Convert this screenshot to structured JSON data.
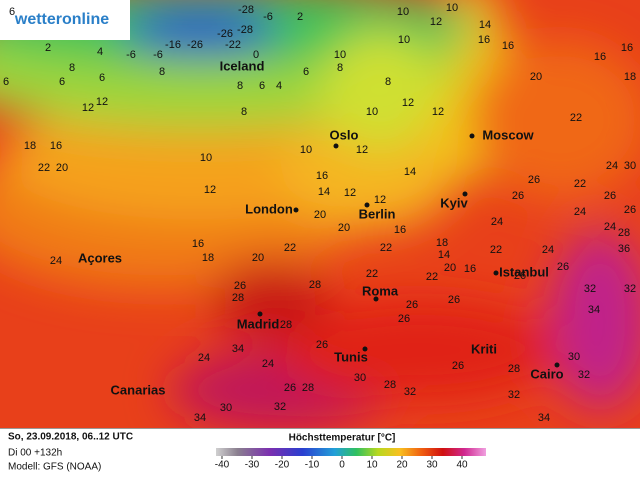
{
  "map": {
    "logo": "wetteronline",
    "cities": [
      "Iceland",
      "Oslo",
      "Moscow",
      "London",
      "Berlin",
      "Kyiv",
      "Açores",
      "Istanbul",
      "Roma",
      "Madrid",
      "Tunis",
      "Kriti",
      "Cairo",
      "Canarias"
    ],
    "temperatures": [
      6,
      -28,
      -6,
      2,
      10,
      10,
      -26,
      -28,
      -26,
      -22,
      -16,
      -6,
      -6,
      0,
      2,
      4,
      6,
      6,
      6,
      8,
      8,
      6,
      8,
      8,
      10,
      16,
      16,
      14,
      12,
      16,
      16,
      20,
      18,
      8,
      6,
      4,
      8,
      12,
      12,
      12,
      10,
      12,
      10,
      18,
      16,
      22,
      20,
      10,
      12,
      10,
      12,
      16,
      14,
      12,
      20,
      20,
      12,
      14,
      16,
      18,
      14,
      20,
      16,
      24,
      26,
      22,
      24,
      30,
      26,
      24,
      26,
      26,
      24,
      36,
      28,
      24,
      22,
      22,
      22,
      22,
      26,
      26,
      32,
      32,
      34,
      16,
      18,
      20,
      22,
      24,
      28,
      26,
      28,
      28,
      26,
      26,
      26,
      34,
      24,
      24,
      26,
      26,
      30,
      32,
      28,
      32,
      30,
      28,
      32,
      26,
      28,
      30,
      32,
      34,
      34,
      22
    ]
  },
  "footer": {
    "date": "So, 23.09.2018, 06..12 UTC",
    "run": "Di 00 +132h",
    "model": "Modell: GFS (NOAA)"
  },
  "legend": {
    "title": "Höchsttemperatur [°C]",
    "ticks": [
      -40,
      -30,
      -20,
      -10,
      0,
      10,
      20,
      30,
      40
    ]
  }
}
